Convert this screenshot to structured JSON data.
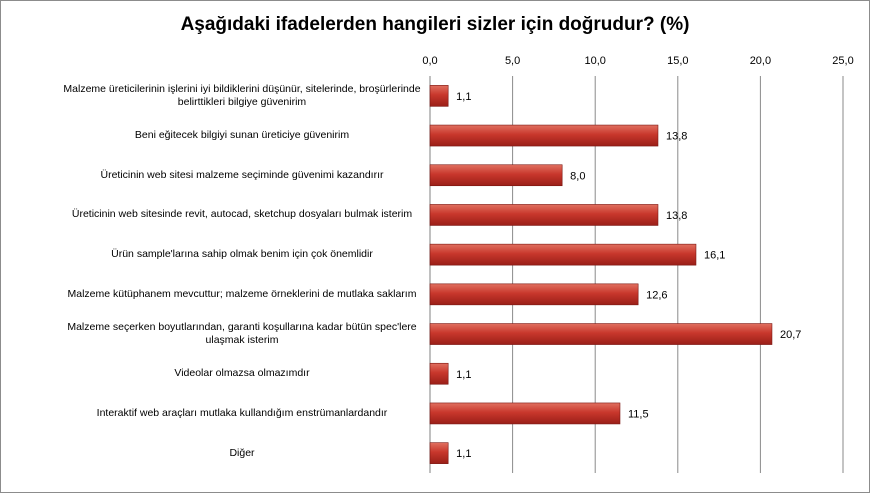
{
  "chart_data": {
    "type": "bar",
    "orientation": "horizontal",
    "title": "Aşağıdaki ifadelerden hangileri sizler için doğrudur? (%)",
    "xlim": [
      0,
      25
    ],
    "xticks": [
      "0,0",
      "5,0",
      "10,0",
      "15,0",
      "20,0",
      "25,0"
    ],
    "categories": [
      "Malzeme üreticilerinin işlerini iyi bildiklerini düşünür, sitelerinde, broşürlerinde belirttikleri bilgiye güvenirim",
      "Beni eğitecek bilgiyi sunan üreticiye güvenirim",
      "Üreticinin web sitesi malzeme seçiminde güvenimi kazandırır",
      "Üreticinin web sitesinde revit, autocad, sketchup dosyaları bulmak isterim",
      "Ürün sample'larına sahip olmak benim için çok önemlidir",
      "Malzeme kütüphanem mevcuttur; malzeme örneklerini de mutlaka saklarım",
      "Malzeme seçerken boyutlarından, garanti koşullarına kadar bütün spec'lere ulaşmak isterim",
      "Videolar olmazsa olmazımdır",
      "Interaktif web araçları mutlaka kullandığım enstrümanlardandır",
      "Diğer"
    ],
    "values": [
      1.1,
      13.8,
      8.0,
      13.8,
      16.1,
      12.6,
      20.7,
      1.1,
      11.5,
      1.1
    ],
    "value_labels": [
      "1,1",
      "13,8",
      "8,0",
      "13,8",
      "16,1",
      "12,6",
      "20,7",
      "1,1",
      "11,5",
      "1,1"
    ],
    "grid": true,
    "legend": "none",
    "bar_color": "#c0392b"
  }
}
